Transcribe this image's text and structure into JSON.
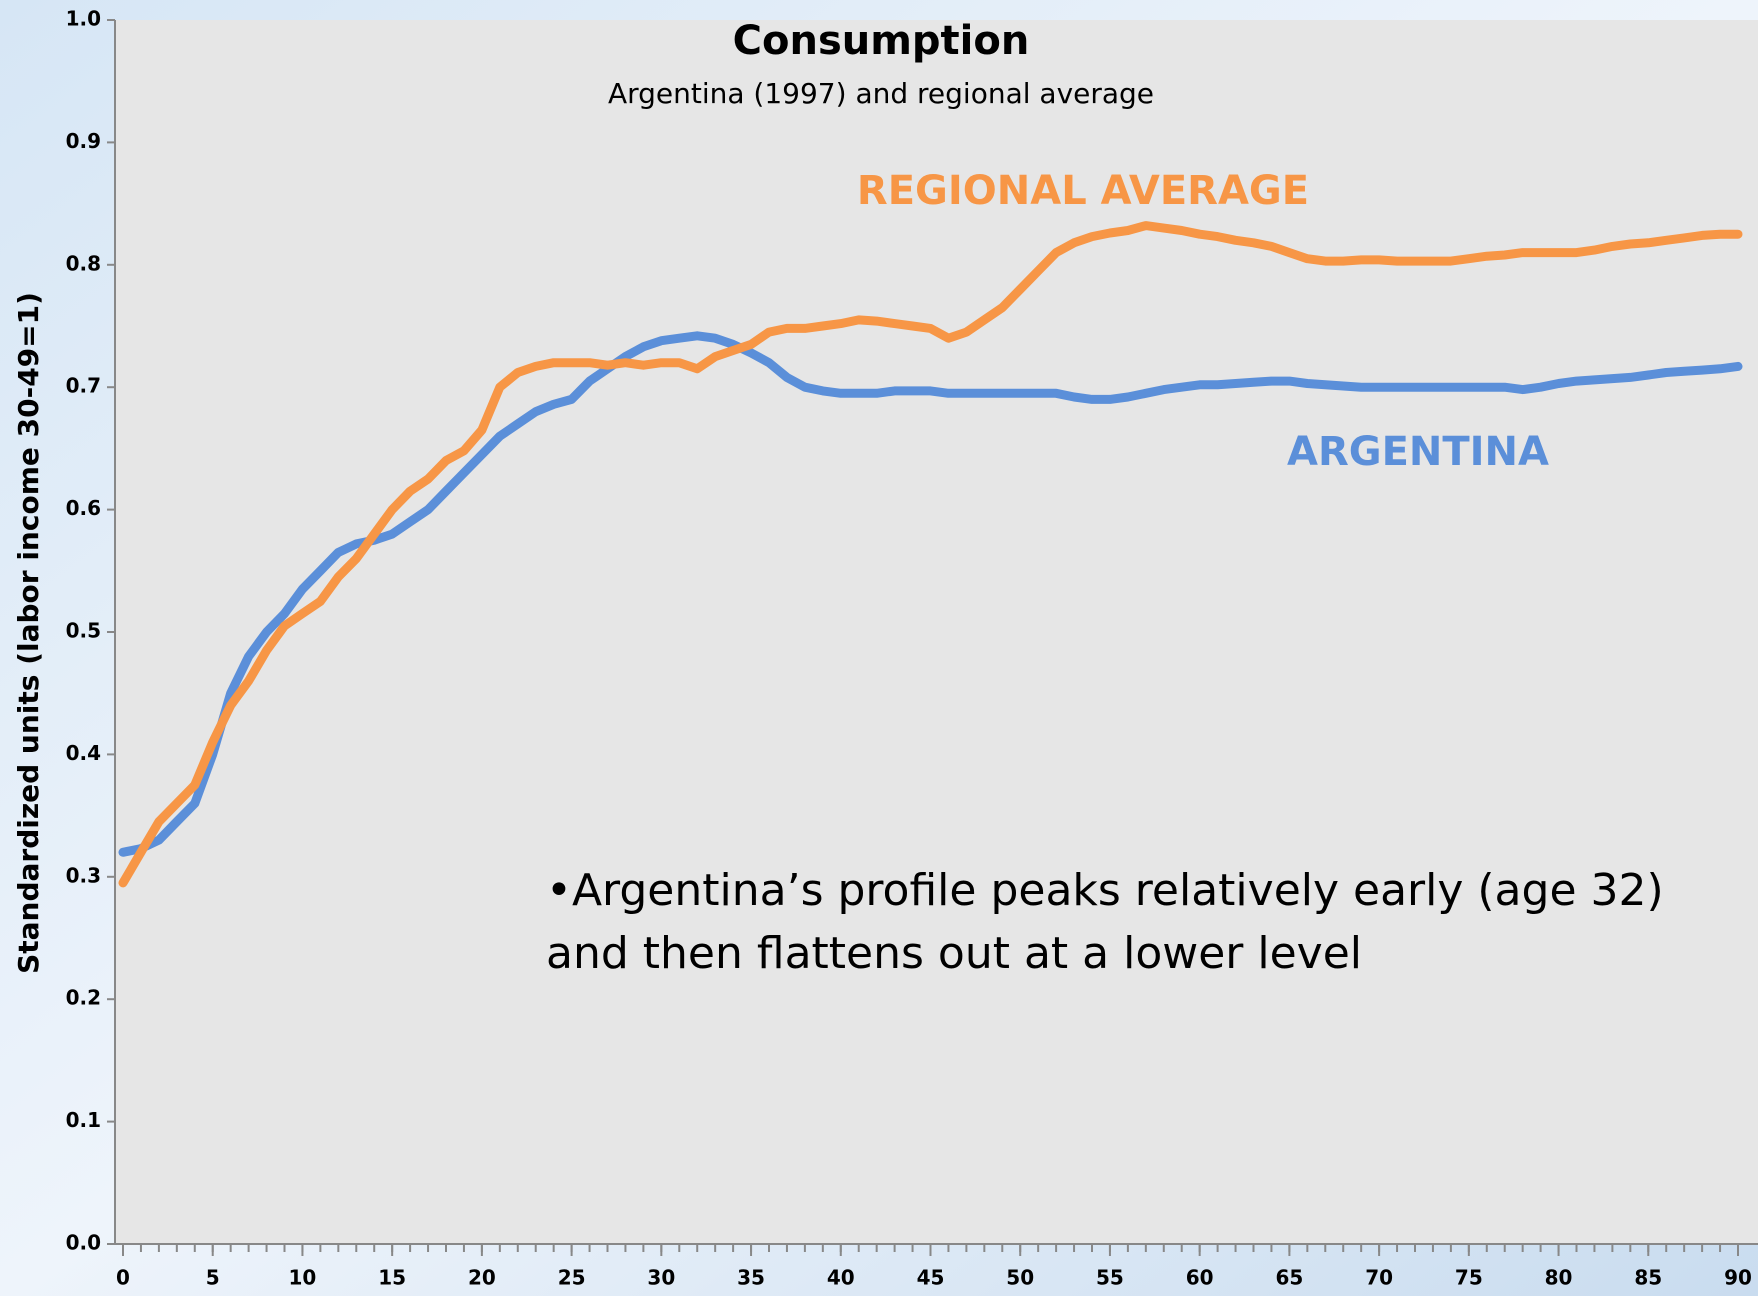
{
  "chart_data": {
    "type": "line",
    "title": "Consumption",
    "subtitle": "Argentina (1997) and regional average",
    "y_label": "Standardized units  (labor income 30-49=1)",
    "annotation": [
      "•Argentina’s profile peaks relatively early (age 32)",
      "and then flattens out at a lower level"
    ],
    "x": [
      0,
      1,
      2,
      3,
      4,
      5,
      6,
      7,
      8,
      9,
      10,
      11,
      12,
      13,
      14,
      15,
      16,
      17,
      18,
      19,
      20,
      21,
      22,
      23,
      24,
      25,
      26,
      27,
      28,
      29,
      30,
      31,
      32,
      33,
      34,
      35,
      36,
      37,
      38,
      39,
      40,
      41,
      42,
      43,
      44,
      45,
      46,
      47,
      48,
      49,
      50,
      51,
      52,
      53,
      54,
      55,
      56,
      57,
      58,
      59,
      60,
      61,
      62,
      63,
      64,
      65,
      66,
      67,
      68,
      69,
      70,
      71,
      72,
      73,
      74,
      75,
      76,
      77,
      78,
      79,
      80,
      81,
      82,
      83,
      84,
      85,
      86,
      87,
      88,
      89,
      90
    ],
    "series": [
      {
        "name": "ARGENTINA",
        "color": "#5b8fd9",
        "values": [
          0.32,
          0.323,
          0.33,
          0.345,
          0.36,
          0.4,
          0.45,
          0.48,
          0.5,
          0.515,
          0.535,
          0.55,
          0.565,
          0.572,
          0.575,
          0.58,
          0.59,
          0.6,
          0.615,
          0.63,
          0.645,
          0.66,
          0.67,
          0.68,
          0.686,
          0.69,
          0.705,
          0.715,
          0.725,
          0.733,
          0.738,
          0.74,
          0.742,
          0.74,
          0.735,
          0.728,
          0.72,
          0.708,
          0.7,
          0.697,
          0.695,
          0.695,
          0.695,
          0.697,
          0.697,
          0.697,
          0.695,
          0.695,
          0.695,
          0.695,
          0.695,
          0.695,
          0.695,
          0.692,
          0.69,
          0.69,
          0.692,
          0.695,
          0.698,
          0.7,
          0.702,
          0.702,
          0.703,
          0.704,
          0.705,
          0.705,
          0.703,
          0.702,
          0.701,
          0.7,
          0.7,
          0.7,
          0.7,
          0.7,
          0.7,
          0.7,
          0.7,
          0.7,
          0.698,
          0.7,
          0.703,
          0.705,
          0.706,
          0.707,
          0.708,
          0.71,
          0.712,
          0.713,
          0.714,
          0.715,
          0.717
        ]
      },
      {
        "name": "REGIONAL AVERAGE",
        "color": "#f79646",
        "values": [
          0.295,
          0.32,
          0.345,
          0.36,
          0.375,
          0.41,
          0.44,
          0.46,
          0.485,
          0.505,
          0.515,
          0.525,
          0.545,
          0.56,
          0.58,
          0.6,
          0.615,
          0.625,
          0.64,
          0.648,
          0.665,
          0.7,
          0.712,
          0.717,
          0.72,
          0.72,
          0.72,
          0.718,
          0.72,
          0.718,
          0.72,
          0.72,
          0.715,
          0.725,
          0.73,
          0.735,
          0.745,
          0.748,
          0.748,
          0.75,
          0.752,
          0.755,
          0.754,
          0.752,
          0.75,
          0.748,
          0.74,
          0.745,
          0.755,
          0.765,
          0.78,
          0.795,
          0.81,
          0.818,
          0.823,
          0.826,
          0.828,
          0.832,
          0.83,
          0.828,
          0.825,
          0.823,
          0.82,
          0.818,
          0.815,
          0.81,
          0.805,
          0.803,
          0.803,
          0.804,
          0.804,
          0.803,
          0.803,
          0.803,
          0.803,
          0.805,
          0.807,
          0.808,
          0.81,
          0.81,
          0.81,
          0.81,
          0.812,
          0.815,
          0.817,
          0.818,
          0.82,
          0.822,
          0.824,
          0.825,
          0.825
        ]
      }
    ],
    "xlim": [
      0,
      90
    ],
    "xticks": [
      0,
      5,
      10,
      15,
      20,
      25,
      30,
      35,
      40,
      45,
      50,
      55,
      60,
      65,
      70,
      75,
      80,
      85,
      90
    ],
    "ylim": [
      0,
      1
    ],
    "yticks": [
      {
        "value": 0,
        "label": "0.0"
      },
      0.1,
      0.2,
      0.3,
      0.4,
      0.5,
      0.6,
      0.7,
      0.8,
      0.9,
      {
        "value": 1,
        "label": "1.0"
      }
    ],
    "grid": false
  }
}
